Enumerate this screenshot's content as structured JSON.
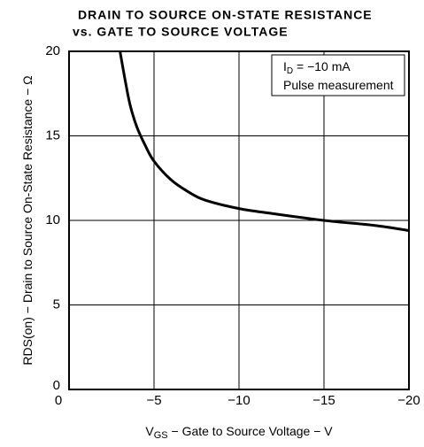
{
  "chart_data": {
    "type": "line",
    "title": [
      "DRAIN TO SOURCE ON-STATE RESISTANCE",
      "vs. GATE TO SOURCE VOLTAGE"
    ],
    "x_label": {
      "symbol": "V",
      "subscript": "GS",
      "text": " − Gate to Source Voltage − V"
    },
    "y_label": {
      "symbol": "R",
      "subscript": "DS(on)",
      "text": " − Drain to Source On-State Resistance − Ω"
    },
    "annotations": [
      {
        "symbol": "I",
        "subscript": "D",
        "text": " = −10 mA"
      },
      {
        "text": "Pulse measurement"
      }
    ],
    "xlim": [
      0,
      -20
    ],
    "xticks": [
      0,
      {
        "value": -5,
        "label": "−5"
      },
      {
        "value": -10,
        "label": "−10"
      },
      {
        "value": -15,
        "label": "−15"
      },
      {
        "value": -20,
        "label": "−20"
      }
    ],
    "ylim": [
      0,
      20
    ],
    "yticks": [
      0,
      5,
      10,
      15,
      20
    ],
    "grid": true,
    "series": [
      {
        "color": "#000000",
        "x": [
          -3.0,
          -3.3,
          -3.6,
          -4,
          -4.5,
          -5,
          -6,
          -7,
          -8,
          -10,
          -12,
          -15,
          -18,
          -20
        ],
        "values": [
          20,
          18.3,
          16.8,
          15.5,
          14.4,
          13.5,
          12.4,
          11.7,
          11.2,
          10.7,
          10.4,
          10.0,
          9.7,
          9.4
        ]
      }
    ]
  }
}
